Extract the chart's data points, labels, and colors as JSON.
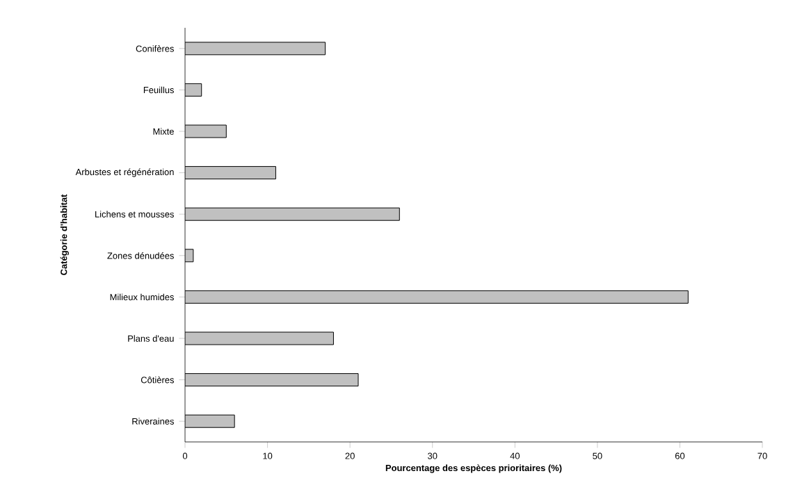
{
  "chart_data": {
    "type": "bar",
    "orientation": "horizontal",
    "xlabel": "Pourcentage des espèces prioritaires (%)",
    "ylabel": "Catégorie d'habitat",
    "categories": [
      "Conifères",
      "Feuillus",
      "Mixte",
      "Arbustes et régénération",
      "Lichens et mousses",
      "Zones dénudées",
      "Milieux humides",
      "Plans d'eau",
      "Côtières",
      "Riveraines"
    ],
    "values": [
      17,
      2,
      5,
      11,
      26,
      1,
      61,
      18,
      21,
      6
    ],
    "color": "#c0c0c0",
    "xlim": [
      0,
      70
    ],
    "xticks": [
      0,
      10,
      20,
      30,
      40,
      50,
      60,
      70
    ],
    "grid": false
  }
}
